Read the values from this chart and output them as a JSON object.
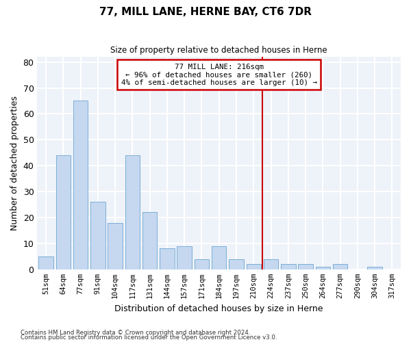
{
  "title": "77, MILL LANE, HERNE BAY, CT6 7DR",
  "subtitle": "Size of property relative to detached houses in Herne",
  "xlabel": "Distribution of detached houses by size in Herne",
  "ylabel": "Number of detached properties",
  "bar_labels": [
    "51sqm",
    "64sqm",
    "77sqm",
    "91sqm",
    "104sqm",
    "117sqm",
    "131sqm",
    "144sqm",
    "157sqm",
    "171sqm",
    "184sqm",
    "197sqm",
    "210sqm",
    "224sqm",
    "237sqm",
    "250sqm",
    "264sqm",
    "277sqm",
    "290sqm",
    "304sqm",
    "317sqm"
  ],
  "bar_values": [
    5,
    44,
    65,
    26,
    18,
    44,
    22,
    8,
    9,
    4,
    9,
    4,
    2,
    4,
    2,
    2,
    1,
    2,
    0,
    1,
    0
  ],
  "bar_color": "#c5d8f0",
  "bar_edge_color": "#7aaed6",
  "vline_color": "#cc0000",
  "annotation_text": "77 MILL LANE: 216sqm\n← 96% of detached houses are smaller (260)\n4% of semi-detached houses are larger (10) →",
  "annotation_box_color": "#cc0000",
  "ylim": [
    0,
    82
  ],
  "yticks": [
    0,
    10,
    20,
    30,
    40,
    50,
    60,
    70,
    80
  ],
  "background_color": "#eef2f9",
  "grid_color": "#ffffff",
  "footer_line1": "Contains HM Land Registry data © Crown copyright and database right 2024.",
  "footer_line2": "Contains public sector information licensed under the Open Government Licence v3.0."
}
